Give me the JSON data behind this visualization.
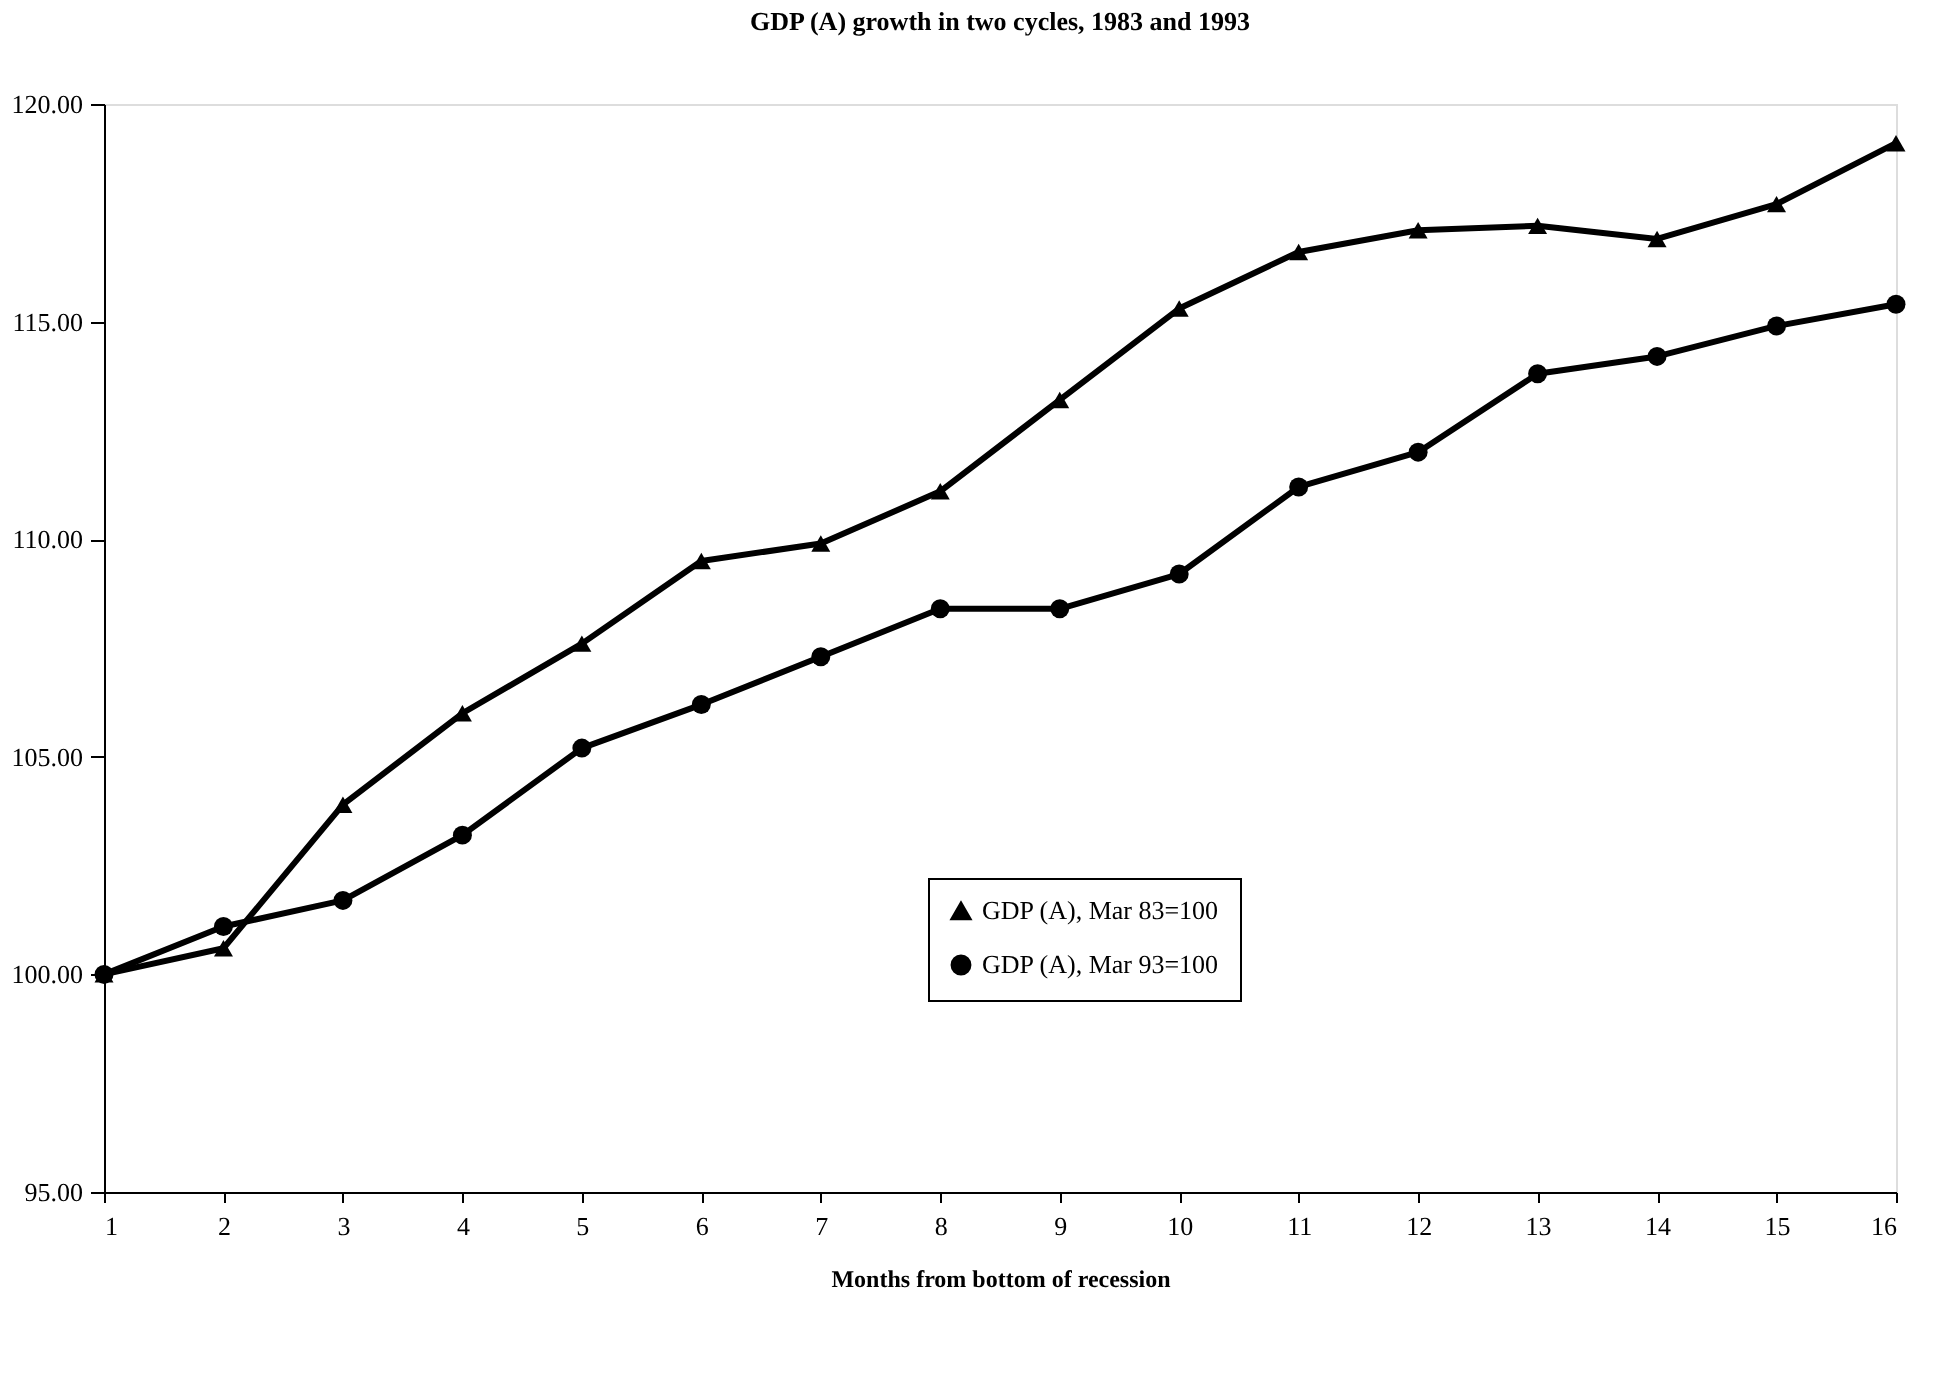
{
  "chart_data": {
    "type": "line",
    "title": "GDP (A) growth in two cycles, 1983 and 1993",
    "xlabel": "Months from bottom of recession",
    "x": [
      1,
      2,
      3,
      4,
      5,
      6,
      7,
      8,
      9,
      10,
      11,
      12,
      13,
      14,
      15,
      16
    ],
    "series": [
      {
        "name": "GDP (A), Mar 83=100",
        "color": "#000000",
        "marker": "triangle",
        "values": [
          100.0,
          100.6,
          103.9,
          106.0,
          107.6,
          109.5,
          109.9,
          111.1,
          113.2,
          115.3,
          116.6,
          117.1,
          117.2,
          116.9,
          117.7,
          119.1
        ]
      },
      {
        "name": "GDP (A), Mar 93=100",
        "color": "#000000",
        "marker": "circle",
        "values": [
          100.0,
          101.1,
          101.7,
          103.2,
          105.2,
          106.2,
          107.3,
          108.4,
          108.4,
          109.2,
          111.2,
          112.0,
          113.8,
          114.2,
          114.9,
          115.4
        ]
      }
    ],
    "xlim": [
      1,
      16
    ],
    "xticks": [
      1,
      2,
      3,
      4,
      5,
      6,
      7,
      8,
      9,
      10,
      11,
      12,
      13,
      14,
      15,
      16
    ],
    "ylim": [
      95,
      120
    ],
    "yticks": [
      {
        "value": 95,
        "label": "95.00"
      },
      {
        "value": 100,
        "label": "100.00"
      },
      {
        "value": 105,
        "label": "105.00"
      },
      {
        "value": 110,
        "label": "110.00"
      },
      {
        "value": 115,
        "label": "115.00"
      },
      {
        "value": 120,
        "label": "120.00"
      }
    ],
    "grid": false,
    "legend": "bottom right",
    "line_style": "solid"
  }
}
